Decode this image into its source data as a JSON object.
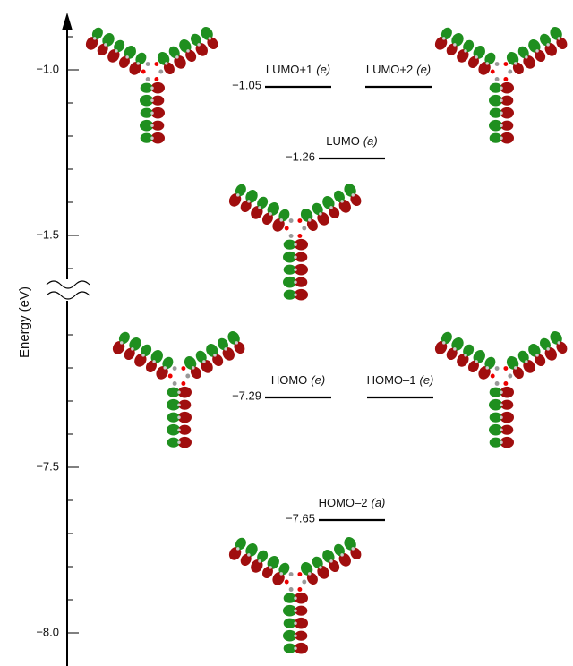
{
  "axis": {
    "label": "Energy (eV)",
    "ticks": [
      "−1.0",
      "−1.5",
      "−7.5",
      "−8.0"
    ]
  },
  "levels": [
    {
      "energy": "−1.05",
      "name": "LUMO+1",
      "symmetry": "(e)"
    },
    {
      "name": "LUMO+2",
      "symmetry": "(e)"
    },
    {
      "energy": "−1.26",
      "name": "LUMO",
      "symmetry": "(a)"
    },
    {
      "energy": "−7.29",
      "name": "HOMO",
      "symmetry": "(e)"
    },
    {
      "name": "HOMO–1",
      "symmetry": "(e)"
    },
    {
      "energy": "−7.65",
      "name": "HOMO–2",
      "symmetry": "(a)"
    }
  ]
}
